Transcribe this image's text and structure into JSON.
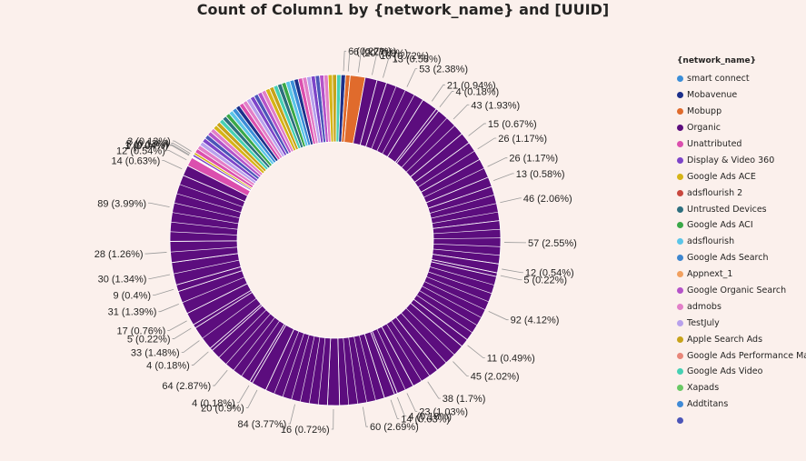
{
  "chart_data": {
    "type": "donut",
    "title": "Count of Column1 by {network_name} and [UUID]",
    "legend_title": "{network_name}",
    "legend_position": "right",
    "legend": [
      {
        "name": "smart connect",
        "color": "#3b8ed8"
      },
      {
        "name": "Mobavenue",
        "color": "#1c2f8a"
      },
      {
        "name": "Mobupp",
        "color": "#e06b2c"
      },
      {
        "name": "Organic",
        "color": "#5c0d7e"
      },
      {
        "name": "Unattributed",
        "color": "#db4fae"
      },
      {
        "name": "Display & Video 360",
        "color": "#7d45c9"
      },
      {
        "name": "Google Ads ACE",
        "color": "#d6b417"
      },
      {
        "name": "adsflourish 2",
        "color": "#c8473e"
      },
      {
        "name": "Untrusted Devices",
        "color": "#2d6f7f"
      },
      {
        "name": "Google Ads ACI",
        "color": "#3aa848"
      },
      {
        "name": "adsflourish",
        "color": "#5bc5e8"
      },
      {
        "name": "Google Ads Search",
        "color": "#3d86cf"
      },
      {
        "name": "Appnext_1",
        "color": "#f1a05f"
      },
      {
        "name": "Google Organic Search",
        "color": "#b553c9"
      },
      {
        "name": "admobs",
        "color": "#e27fc8"
      },
      {
        "name": "TestJuly",
        "color": "#b8a1ec"
      },
      {
        "name": "Apple Search Ads",
        "color": "#c7a31a"
      },
      {
        "name": "Google Ads Performance Max",
        "color": "#e88679"
      },
      {
        "name": "Google Ads Video",
        "color": "#46d0b3"
      },
      {
        "name": "Xapads",
        "color": "#69c864"
      },
      {
        "name": "Addtitans",
        "color": "#3f8ad6"
      },
      {
        "name": "",
        "color": "#4b55b8"
      }
    ],
    "slices": [
      {
        "value": 6,
        "label": "6 (0.27%)",
        "color": "#1c2f8a"
      },
      {
        "value": 6,
        "label": "6 (0.27%)",
        "color": "#e06b2c"
      },
      {
        "value": 20,
        "label": "20 (0.9%)",
        "color": "#e06b2c"
      },
      {
        "value": 16,
        "label": "16 (0.72%)",
        "color": "#5c0d7e"
      },
      {
        "value": 13,
        "label": "13 (0.58%)",
        "color": "#5c0d7e"
      },
      {
        "value": 53,
        "label": "53 (2.38%)",
        "color": "#5c0d7e"
      },
      {
        "value": 21,
        "label": "21 (0.94%)",
        "color": "#5c0d7e"
      },
      {
        "value": 4,
        "label": "4 (0.18%)",
        "color": "#5c0d7e"
      },
      {
        "value": 43,
        "label": "43 (1.93%)",
        "color": "#5c0d7e"
      },
      {
        "value": 15,
        "label": "15 (0.67%)",
        "color": "#5c0d7e"
      },
      {
        "value": 26,
        "label": "26 (1.17%)",
        "color": "#5c0d7e"
      },
      {
        "value": 26,
        "label": "26 (1.17%)",
        "color": "#5c0d7e"
      },
      {
        "value": 13,
        "label": "13 (0.58%)",
        "color": "#5c0d7e"
      },
      {
        "value": 46,
        "label": "46 (2.06%)",
        "color": "#5c0d7e"
      },
      {
        "value": 57,
        "label": "57 (2.55%)",
        "color": "#5c0d7e"
      },
      {
        "value": 12,
        "label": "12 (0.54%)",
        "color": "#5c0d7e"
      },
      {
        "value": 5,
        "label": "5 (0.22%)",
        "color": "#5c0d7e"
      },
      {
        "value": 92,
        "label": "92 (4.12%)",
        "color": "#5c0d7e"
      },
      {
        "value": 11,
        "label": "11 (0.49%)",
        "color": "#5c0d7e"
      },
      {
        "value": 45,
        "label": "45 (2.02%)",
        "color": "#5c0d7e"
      },
      {
        "value": 38,
        "label": "38 (1.7%)",
        "color": "#5c0d7e"
      },
      {
        "value": 23,
        "label": "23 (1.03%)",
        "color": "#5c0d7e"
      },
      {
        "value": 4,
        "label": "4 (0.18%)",
        "color": "#5c0d7e"
      },
      {
        "value": 14,
        "label": "14 (0.63%)",
        "color": "#5c0d7e"
      },
      {
        "value": 60,
        "label": "60 (2.69%)",
        "color": "#5c0d7e"
      },
      {
        "value": 16,
        "label": "16 (0.72%)",
        "color": "#5c0d7e"
      },
      {
        "value": 84,
        "label": "84 (3.77%)",
        "color": "#5c0d7e"
      },
      {
        "value": 20,
        "label": "20 (0.9%)",
        "color": "#5c0d7e"
      },
      {
        "value": 4,
        "label": "4 (0.18%)",
        "color": "#5c0d7e"
      },
      {
        "value": 64,
        "label": "64 (2.87%)",
        "color": "#5c0d7e"
      },
      {
        "value": 4,
        "label": "4 (0.18%)",
        "color": "#5c0d7e"
      },
      {
        "value": 33,
        "label": "33 (1.48%)",
        "color": "#5c0d7e"
      },
      {
        "value": 5,
        "label": "5 (0.22%)",
        "color": "#5c0d7e"
      },
      {
        "value": 17,
        "label": "17 (0.76%)",
        "color": "#5c0d7e"
      },
      {
        "value": 31,
        "label": "31 (1.39%)",
        "color": "#5c0d7e"
      },
      {
        "value": 9,
        "label": "9 (0.4%)",
        "color": "#5c0d7e"
      },
      {
        "value": 30,
        "label": "30 (1.34%)",
        "color": "#5c0d7e"
      },
      {
        "value": 28,
        "label": "28 (1.26%)",
        "color": "#5c0d7e"
      },
      {
        "value": 89,
        "label": "89 (3.99%)",
        "color": "#5c0d7e"
      },
      {
        "value": 14,
        "label": "14 (0.63%)",
        "color": "#5c0d7e"
      },
      {
        "value": 12,
        "label": "12 (0.54%)",
        "color": "#db4fae"
      },
      {
        "value": 1,
        "label": "1 (0.04%)",
        "color": "#db4fae"
      },
      {
        "value": 1,
        "label": "1 (0.04%)",
        "color": "#e27fc8"
      },
      {
        "value": 3,
        "label": "3 (0.13%)",
        "color": "#7d45c9"
      },
      {
        "value": 3,
        "label": "3 (0.13%)",
        "color": "#d6b417"
      }
    ]
  }
}
